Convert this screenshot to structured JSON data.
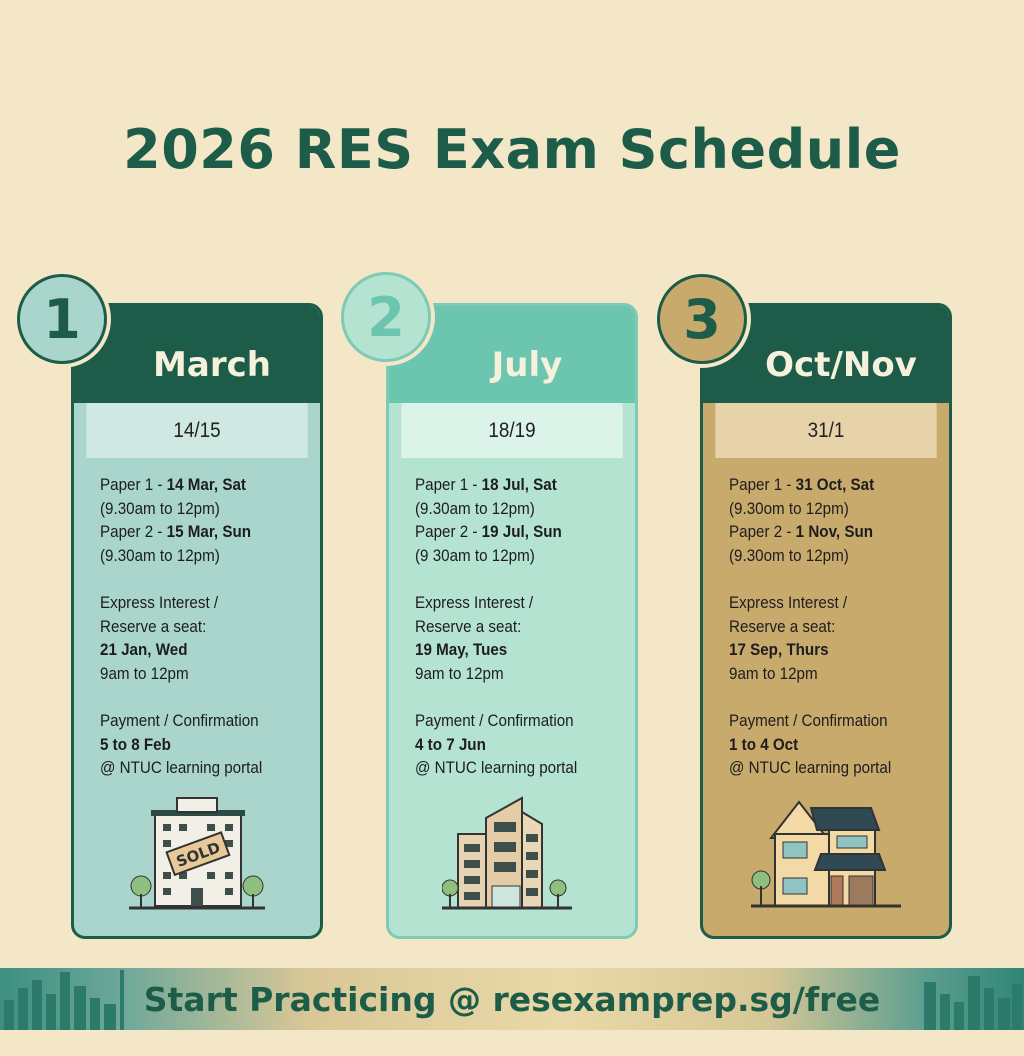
{
  "title": "2026 RES Exam Schedule",
  "colors": {
    "background": "#f3e7c8",
    "dark_green": "#1d5c49",
    "card1_body": "#a9d5cd",
    "card2_body": "#b5e3d1",
    "card3_body": "#c8aa6d"
  },
  "cards": [
    {
      "number": "1",
      "month": "March",
      "dates": "14/15",
      "paper1_label": "Paper 1 - ",
      "paper1_date": "14 Mar, Sat",
      "paper1_time": "(9.30am to 12pm)",
      "paper2_label": "Paper 2 - ",
      "paper2_date": "15 Mar, Sun",
      "paper2_time": "(9.30am to 12pm)",
      "interest_line1": "Express Interest /",
      "interest_line2": "Reserve a seat:",
      "interest_date": "21 Jan, Wed",
      "interest_time": "9am to 12pm",
      "payment_label": "Payment / Confirmation",
      "payment_date": "5 to 8 Feb",
      "payment_portal": "@ NTUC learning portal",
      "icon": "sold-apartment-building-icon",
      "sign": "SOLD"
    },
    {
      "number": "2",
      "month": "July",
      "dates": "18/19",
      "paper1_label": "Paper 1 - ",
      "paper1_date": "18 Jul, Sat",
      "paper1_time": "(9.30am to 12pm)",
      "paper2_label": "Paper 2 - ",
      "paper2_date": "19 Jul, Sun",
      "paper2_time": "(9 30am to 12pm)",
      "interest_line1": "Express Interest /",
      "interest_line2": "Reserve a seat:",
      "interest_date": "19 May, Tues",
      "interest_time": "9am to 12pm",
      "payment_label": "Payment / Confirmation",
      "payment_date": "4 to 7 Jun",
      "payment_portal": "@ NTUC learning portal",
      "icon": "condo-building-icon"
    },
    {
      "number": "3",
      "month": "Oct/Nov",
      "dates": "31/1",
      "paper1_label": "Paper 1 - ",
      "paper1_date": "31 Oct, Sat",
      "paper1_time": "(9.30om to 12pm)",
      "paper2_label": "Paper 2 - ",
      "paper2_date": "1 Nov, Sun",
      "paper2_time": "(9.30om to 12pm)",
      "interest_line1": "Express Interest /",
      "interest_line2": "Reserve a seat:",
      "interest_date": "17 Sep, Thurs",
      "interest_time": "9am to 12pm",
      "payment_label": "Payment / Confirmation",
      "payment_date": "1 to 4 Oct",
      "payment_portal": "@ NTUC learning portal",
      "icon": "landed-house-icon"
    }
  ],
  "banner": {
    "text": "Start Practicing @ resexamprep.sg/free",
    "icon": "city-skyline-icon"
  }
}
